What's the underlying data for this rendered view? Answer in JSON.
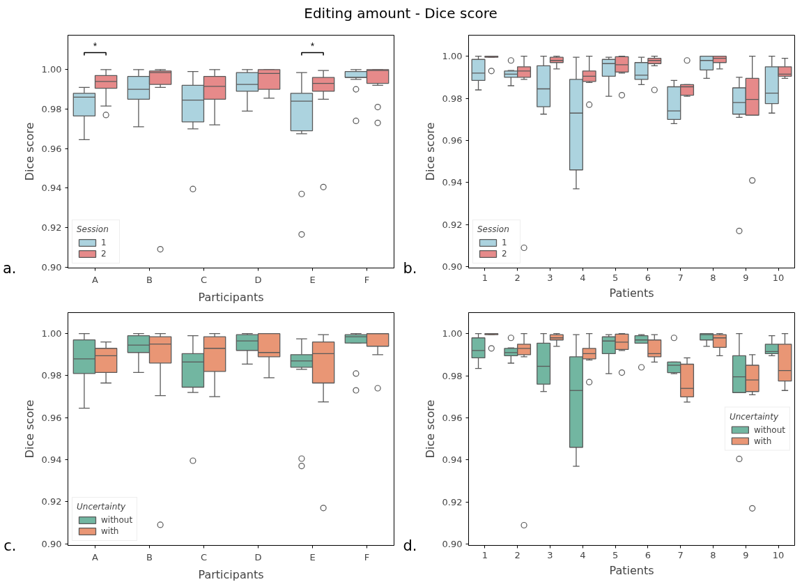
{
  "chart_data": [
    {
      "type": "box",
      "title": "Editing amount - Dice score",
      "xlabel": "Participants",
      "ylabel": "Dice score",
      "legend": "bottom left",
      "legend_title": "Session",
      "categories": [
        "A",
        "B",
        "C",
        "D",
        "E",
        "F"
      ],
      "ylim": [
        0.8995,
        1.0174
      ],
      "yticks": [
        {
          "value": 0.9,
          "label": "0.90"
        },
        {
          "value": 0.92,
          "label": "0.92"
        },
        {
          "value": 0.94,
          "label": "0.94"
        },
        {
          "value": 0.96,
          "label": "0.96"
        },
        {
          "value": 0.98,
          "label": "0.98"
        },
        {
          "value": 1.0,
          "label": "1.00"
        }
      ],
      "annotations": [
        "a.",
        "*",
        "*"
      ],
      "series": [
        {
          "name": "1",
          "color": "#acd3df",
          "boxes": [
            {
              "low": 0.9645,
              "q1": 0.9765,
              "median": 0.986,
              "q3": 0.988,
              "high": 0.991
            },
            {
              "low": 0.971,
              "q1": 0.985,
              "median": 0.99,
              "q3": 0.9965,
              "high": 1.0
            },
            {
              "low": 0.97,
              "q1": 0.9735,
              "median": 0.9845,
              "q3": 0.992,
              "high": 0.999,
              "outliers": [
                0.9395
              ]
            },
            {
              "low": 0.979,
              "q1": 0.989,
              "median": 0.9925,
              "q3": 0.9985,
              "high": 1.0
            },
            {
              "low": 0.9675,
              "q1": 0.969,
              "median": 0.984,
              "q3": 0.988,
              "high": 0.9985,
              "outliers": [
                0.937,
                0.9165
              ]
            },
            {
              "low": 0.995,
              "q1": 0.996,
              "median": 0.996,
              "q3": 0.999,
              "high": 1.0,
              "outliers": [
                0.99,
                0.974
              ]
            }
          ]
        },
        {
          "name": "2",
          "color": "#e68a8a",
          "boxes": [
            {
              "low": 0.9815,
              "q1": 0.9905,
              "median": 0.994,
              "q3": 0.997,
              "high": 1.0,
              "outliers": [
                0.977
              ]
            },
            {
              "low": 0.991,
              "q1": 0.9925,
              "median": 0.9985,
              "q3": 0.9993,
              "high": 1.0,
              "outliers": [
                0.909
              ]
            },
            {
              "low": 0.972,
              "q1": 0.985,
              "median": 0.9915,
              "q3": 0.9965,
              "high": 1.0
            },
            {
              "low": 0.9855,
              "q1": 0.99,
              "median": 0.998,
              "q3": 1.0,
              "high": 1.0
            },
            {
              "low": 0.985,
              "q1": 0.989,
              "median": 0.993,
              "q3": 0.996,
              "high": 0.9995,
              "outliers": [
                0.9405
              ]
            },
            {
              "low": 0.992,
              "q1": 0.993,
              "median": 0.9995,
              "q3": 1.0,
              "high": 1.0,
              "outliers": [
                0.981,
                0.973
              ]
            }
          ]
        }
      ]
    },
    {
      "type": "box",
      "xlabel": "Patients",
      "ylabel": "Dice score",
      "legend": "bottom left",
      "legend_title": "Session",
      "categories": [
        "1",
        "2",
        "3",
        "4",
        "5",
        "6",
        "7",
        "8",
        "9",
        "10"
      ],
      "ylim": [
        0.8994,
        1.01
      ],
      "yticks": [
        {
          "value": 0.9,
          "label": "0.90"
        },
        {
          "value": 0.92,
          "label": "0.92"
        },
        {
          "value": 0.94,
          "label": "0.94"
        },
        {
          "value": 0.96,
          "label": "0.96"
        },
        {
          "value": 0.98,
          "label": "0.98"
        },
        {
          "value": 1.0,
          "label": "1.00"
        }
      ],
      "annotations": [
        "b."
      ],
      "series": [
        {
          "name": "1",
          "color": "#acd3df",
          "boxes": [
            {
              "low": 0.984,
              "q1": 0.9885,
              "median": 0.992,
              "q3": 0.9985,
              "high": 1.0
            },
            {
              "low": 0.986,
              "q1": 0.99,
              "median": 0.9915,
              "q3": 0.993,
              "high": 0.9932,
              "outliers": [
                0.998
              ]
            },
            {
              "low": 0.9725,
              "q1": 0.976,
              "median": 0.9845,
              "q3": 0.9955,
              "high": 1.0
            },
            {
              "low": 0.937,
              "q1": 0.946,
              "median": 0.973,
              "q3": 0.989,
              "high": 0.9995
            },
            {
              "low": 0.981,
              "q1": 0.9905,
              "median": 0.9965,
              "q3": 0.9985,
              "high": 0.9995
            },
            {
              "low": 0.9865,
              "q1": 0.989,
              "median": 0.991,
              "q3": 0.997,
              "high": 0.9995
            },
            {
              "low": 0.968,
              "q1": 0.97,
              "median": 0.974,
              "q3": 0.9855,
              "high": 0.9885
            },
            {
              "low": 0.9895,
              "q1": 0.9935,
              "median": 0.998,
              "q3": 1.0,
              "high": 1.0
            },
            {
              "low": 0.971,
              "q1": 0.9725,
              "median": 0.978,
              "q3": 0.985,
              "high": 0.99,
              "outliers": [
                0.917
              ]
            },
            {
              "low": 0.973,
              "q1": 0.9775,
              "median": 0.9825,
              "q3": 0.995,
              "high": 1.0
            }
          ]
        },
        {
          "name": "2",
          "color": "#e68a8a",
          "boxes": [
            {
              "low": 0.9995,
              "q1": 0.9995,
              "median": 1.0,
              "q3": 1.0,
              "high": 1.0,
              "outliers": [
                0.993
              ]
            },
            {
              "low": 0.989,
              "q1": 0.99,
              "median": 0.993,
              "q3": 0.995,
              "high": 1.0,
              "outliers": [
                0.909
              ]
            },
            {
              "low": 0.994,
              "q1": 0.997,
              "median": 0.998,
              "q3": 0.9995,
              "high": 1.0
            },
            {
              "low": 0.9875,
              "q1": 0.988,
              "median": 0.9905,
              "q3": 0.993,
              "high": 1.0,
              "outliers": [
                0.977
              ]
            },
            {
              "low": 0.992,
              "q1": 0.9925,
              "median": 0.996,
              "q3": 0.9998,
              "high": 1.0,
              "outliers": [
                0.9815
              ]
            },
            {
              "low": 0.9955,
              "q1": 0.9965,
              "median": 0.998,
              "q3": 0.999,
              "high": 1.0,
              "outliers": [
                0.984
              ]
            },
            {
              "low": 0.981,
              "q1": 0.9815,
              "median": 0.9855,
              "q3": 0.9865,
              "high": 0.9865,
              "outliers": [
                0.998
              ]
            },
            {
              "low": 0.994,
              "q1": 0.997,
              "median": 0.999,
              "q3": 1.0,
              "high": 1.0
            },
            {
              "low": 0.972,
              "q1": 0.972,
              "median": 0.9795,
              "q3": 0.9895,
              "high": 1.0,
              "outliers": [
                0.941
              ]
            },
            {
              "low": 0.9895,
              "q1": 0.9905,
              "median": 0.9915,
              "q3": 0.995,
              "high": 0.999
            }
          ]
        }
      ]
    },
    {
      "type": "box",
      "xlabel": "Participants",
      "ylabel": "Dice score",
      "legend": "bottom left",
      "legend_title": "Uncertainty",
      "categories": [
        "A",
        "B",
        "C",
        "D",
        "E",
        "F"
      ],
      "ylim": [
        0.8992,
        1.01
      ],
      "yticks": [
        {
          "value": 0.9,
          "label": "0.90"
        },
        {
          "value": 0.92,
          "label": "0.92"
        },
        {
          "value": 0.94,
          "label": "0.94"
        },
        {
          "value": 0.96,
          "label": "0.96"
        },
        {
          "value": 0.98,
          "label": "0.98"
        },
        {
          "value": 1.0,
          "label": "1.00"
        }
      ],
      "annotations": [
        "c."
      ],
      "series": [
        {
          "name": "without",
          "color": "#72b6a1",
          "boxes": [
            {
              "low": 0.9645,
              "q1": 0.981,
              "median": 0.988,
              "q3": 0.997,
              "high": 1.0
            },
            {
              "low": 0.9815,
              "q1": 0.991,
              "median": 0.9945,
              "q3": 0.999,
              "high": 1.0
            },
            {
              "low": 0.972,
              "q1": 0.9745,
              "median": 0.9865,
              "q3": 0.9905,
              "high": 0.999,
              "outliers": [
                0.9395
              ]
            },
            {
              "low": 0.9855,
              "q1": 0.992,
              "median": 0.9965,
              "q3": 0.9995,
              "high": 1.0
            },
            {
              "low": 0.983,
              "q1": 0.984,
              "median": 0.987,
              "q3": 0.99,
              "high": 0.9975,
              "outliers": [
                0.9405,
                0.937
              ]
            },
            {
              "low": 0.9955,
              "q1": 0.9955,
              "median": 0.9985,
              "q3": 0.9995,
              "high": 1.0,
              "outliers": [
                0.981,
                0.973
              ]
            }
          ]
        },
        {
          "name": "with",
          "color": "#e99675",
          "boxes": [
            {
              "low": 0.9765,
              "q1": 0.9815,
              "median": 0.9895,
              "q3": 0.993,
              "high": 0.996
            },
            {
              "low": 0.9705,
              "q1": 0.986,
              "median": 0.995,
              "q3": 0.9985,
              "high": 1.0,
              "outliers": [
                0.909
              ]
            },
            {
              "low": 0.97,
              "q1": 0.982,
              "median": 0.993,
              "q3": 0.9985,
              "high": 1.0
            },
            {
              "low": 0.979,
              "q1": 0.989,
              "median": 0.991,
              "q3": 1.0,
              "high": 1.0
            },
            {
              "low": 0.9675,
              "q1": 0.9765,
              "median": 0.9905,
              "q3": 0.996,
              "high": 0.9995,
              "outliers": [
                0.917
              ]
            },
            {
              "low": 0.99,
              "q1": 0.994,
              "median": 1.0,
              "q3": 1.0,
              "high": 1.0,
              "outliers": [
                0.974
              ]
            }
          ]
        }
      ]
    },
    {
      "type": "box",
      "xlabel": "Patients",
      "ylabel": "Dice score",
      "legend": "right",
      "legend_title": "Uncertainty",
      "categories": [
        "1",
        "2",
        "3",
        "4",
        "5",
        "6",
        "7",
        "8",
        "9",
        "10"
      ],
      "ylim": [
        0.8994,
        1.01
      ],
      "yticks": [
        {
          "value": 0.9,
          "label": "0.90"
        },
        {
          "value": 0.92,
          "label": "0.92"
        },
        {
          "value": 0.94,
          "label": "0.94"
        },
        {
          "value": 0.96,
          "label": "0.96"
        },
        {
          "value": 0.98,
          "label": "0.98"
        },
        {
          "value": 1.0,
          "label": "1.00"
        }
      ],
      "annotations": [
        "d."
      ],
      "series": [
        {
          "name": "without",
          "color": "#72b6a1",
          "boxes": [
            {
              "low": 0.9835,
              "q1": 0.9885,
              "median": 0.992,
              "q3": 0.998,
              "high": 1.0
            },
            {
              "low": 0.986,
              "q1": 0.9895,
              "median": 0.991,
              "q3": 0.993,
              "high": 0.9932,
              "outliers": [
                0.998
              ]
            },
            {
              "low": 0.9725,
              "q1": 0.976,
              "median": 0.9845,
              "q3": 0.9955,
              "high": 1.0
            },
            {
              "low": 0.937,
              "q1": 0.946,
              "median": 0.973,
              "q3": 0.989,
              "high": 0.9995
            },
            {
              "low": 0.981,
              "q1": 0.9905,
              "median": 0.9965,
              "q3": 0.9985,
              "high": 0.9995
            },
            {
              "low": 0.9955,
              "q1": 0.9955,
              "median": 0.997,
              "q3": 0.999,
              "high": 0.9995,
              "outliers": [
                0.984
              ]
            },
            {
              "low": 0.981,
              "q1": 0.9815,
              "median": 0.985,
              "q3": 0.9865,
              "high": 0.9865,
              "outliers": [
                0.998
              ]
            },
            {
              "low": 0.994,
              "q1": 0.997,
              "median": 0.9995,
              "q3": 1.0,
              "high": 1.0
            },
            {
              "low": 0.972,
              "q1": 0.972,
              "median": 0.9795,
              "q3": 0.9895,
              "high": 1.0,
              "outliers": [
                0.9405
              ]
            },
            {
              "low": 0.9895,
              "q1": 0.9905,
              "median": 0.9915,
              "q3": 0.995,
              "high": 0.999
            }
          ]
        },
        {
          "name": "with",
          "color": "#e99675",
          "boxes": [
            {
              "low": 0.9995,
              "q1": 0.9995,
              "median": 1.0,
              "q3": 1.0,
              "high": 1.0,
              "outliers": [
                0.993
              ]
            },
            {
              "low": 0.989,
              "q1": 0.99,
              "median": 0.993,
              "q3": 0.995,
              "high": 1.0,
              "outliers": [
                0.909
              ]
            },
            {
              "low": 0.994,
              "q1": 0.997,
              "median": 0.998,
              "q3": 0.9995,
              "high": 1.0
            },
            {
              "low": 0.9875,
              "q1": 0.988,
              "median": 0.9905,
              "q3": 0.993,
              "high": 1.0,
              "outliers": [
                0.977
              ]
            },
            {
              "low": 0.992,
              "q1": 0.9925,
              "median": 0.996,
              "q3": 0.9998,
              "high": 1.0,
              "outliers": [
                0.9815
              ]
            },
            {
              "low": 0.9865,
              "q1": 0.989,
              "median": 0.9905,
              "q3": 0.997,
              "high": 0.9995
            },
            {
              "low": 0.9675,
              "q1": 0.97,
              "median": 0.974,
              "q3": 0.9855,
              "high": 0.9885
            },
            {
              "low": 0.9895,
              "q1": 0.9935,
              "median": 0.998,
              "q3": 0.9995,
              "high": 1.0
            },
            {
              "low": 0.971,
              "q1": 0.9725,
              "median": 0.978,
              "q3": 0.985,
              "high": 0.99,
              "outliers": [
                0.917
              ]
            },
            {
              "low": 0.973,
              "q1": 0.9775,
              "median": 0.9825,
              "q3": 0.995,
              "high": 1.0
            }
          ]
        }
      ]
    }
  ]
}
